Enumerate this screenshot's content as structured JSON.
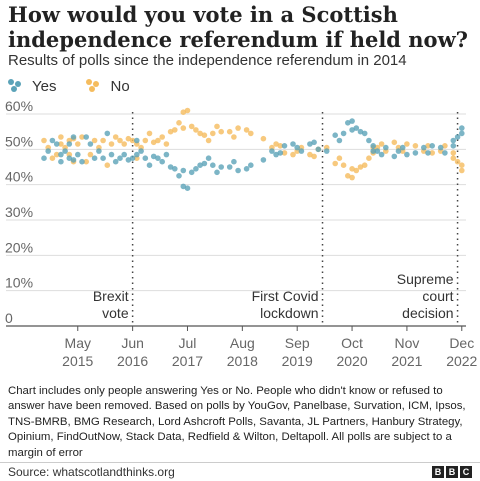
{
  "title": "How would you vote in a Scottish independence referendum if held now?",
  "subtitle": "Results of polls since the independence referendum in 2014",
  "legend": [
    {
      "name": "Yes",
      "color": "#5ba3b8"
    },
    {
      "name": "No",
      "color": "#f5bc5e"
    }
  ],
  "note": "Chart includes only people answering Yes or No. People who didn't know or refused to answer have been removed. Based on polls by YouGov, Panelbase, Survation, ICM, Ipsos, TNS-BMRB, BMG Research, Lord Ashcroft Polls, Savanta, JL Partners, Hanbury Strategy, Opinium, FindOutNow, Stack Data, Redfield & Wilton, Deltapoll. All polls are subject to a margin of error",
  "source": "Source: whatscotlandthinks.org",
  "logo": "BBC",
  "chart_data": {
    "type": "scatter",
    "title": "How would you vote in a Scottish independence referendum if held now?",
    "subtitle": "Results of polls since the independence referendum in 2014",
    "xlabel": "",
    "ylabel": "",
    "ylim": [
      0,
      60
    ],
    "xlim": [
      "2014-09",
      "2023-01"
    ],
    "yticks": [
      {
        "value": 0,
        "label": "0"
      },
      {
        "value": 10,
        "label": "10%"
      },
      {
        "value": 20,
        "label": "20%"
      },
      {
        "value": 30,
        "label": "30%"
      },
      {
        "value": 40,
        "label": "40%"
      },
      {
        "value": 50,
        "label": "50%"
      },
      {
        "value": 60,
        "label": "60%"
      }
    ],
    "xticks": [
      {
        "date": "2015-05",
        "month": "May",
        "year": "2015"
      },
      {
        "date": "2016-06",
        "month": "Jun",
        "year": "2016"
      },
      {
        "date": "2017-07",
        "month": "Jul",
        "year": "2017"
      },
      {
        "date": "2018-08",
        "month": "Aug",
        "year": "2018"
      },
      {
        "date": "2019-09",
        "month": "Sep",
        "year": "2019"
      },
      {
        "date": "2020-10",
        "month": "Oct",
        "year": "2020"
      },
      {
        "date": "2021-11",
        "month": "Nov",
        "year": "2021"
      },
      {
        "date": "2022-12",
        "month": "Dec",
        "year": "2022"
      }
    ],
    "grid": true,
    "legend_position": "top-left",
    "annotations": [
      {
        "date": "2016-06",
        "lines": [
          "Brexit",
          "vote"
        ]
      },
      {
        "date": "2020-03",
        "lines": [
          "First Covid",
          "lockdown"
        ]
      },
      {
        "date": "2022-11",
        "lines": [
          "Supreme",
          "court",
          "decision"
        ]
      }
    ],
    "series": [
      {
        "name": "Yes",
        "color": "#5ba3b8",
        "points": [
          [
            "2014-09",
            47.5
          ],
          [
            "2014-10",
            49.5
          ],
          [
            "2014-11",
            52.5
          ],
          [
            "2014-12",
            51.5
          ],
          [
            "2015-01",
            48.5
          ],
          [
            "2015-01",
            46.5
          ],
          [
            "2015-02",
            49.5
          ],
          [
            "2015-03",
            47.5
          ],
          [
            "2015-03",
            51.5
          ],
          [
            "2015-04",
            47.0
          ],
          [
            "2015-04",
            53.5
          ],
          [
            "2015-05",
            48.5
          ],
          [
            "2015-06",
            46.5
          ],
          [
            "2015-07",
            53.5
          ],
          [
            "2015-08",
            51.5
          ],
          [
            "2015-09",
            47.5
          ],
          [
            "2015-10",
            49.5
          ],
          [
            "2015-11",
            47.5
          ],
          [
            "2015-12",
            54.5
          ],
          [
            "2016-01",
            48.5
          ],
          [
            "2016-02",
            46.5
          ],
          [
            "2016-03",
            47.5
          ],
          [
            "2016-04",
            48.5
          ],
          [
            "2016-05",
            47.0
          ],
          [
            "2016-06",
            47.5
          ],
          [
            "2016-07",
            52.5
          ],
          [
            "2016-07",
            48.5
          ],
          [
            "2016-08",
            49.5
          ],
          [
            "2016-09",
            47.5
          ],
          [
            "2016-10",
            45.5
          ],
          [
            "2016-11",
            48.0
          ],
          [
            "2016-12",
            47.5
          ],
          [
            "2017-01",
            46.5
          ],
          [
            "2017-02",
            48.5
          ],
          [
            "2017-03",
            45.0
          ],
          [
            "2017-04",
            44.5
          ],
          [
            "2017-05",
            42.5
          ],
          [
            "2017-06",
            39.5
          ],
          [
            "2017-06",
            44.0
          ],
          [
            "2017-07",
            39.0
          ],
          [
            "2017-08",
            43.5
          ],
          [
            "2017-09",
            44.5
          ],
          [
            "2017-10",
            45.5
          ],
          [
            "2017-11",
            46.0
          ],
          [
            "2017-12",
            47.5
          ],
          [
            "2018-01",
            45.5
          ],
          [
            "2018-02",
            43.5
          ],
          [
            "2018-03",
            45.0
          ],
          [
            "2018-05",
            45.0
          ],
          [
            "2018-06",
            46.5
          ],
          [
            "2018-07",
            44.0
          ],
          [
            "2018-09",
            44.5
          ],
          [
            "2018-10",
            45.5
          ],
          [
            "2019-01",
            47.0
          ],
          [
            "2019-03",
            49.5
          ],
          [
            "2019-04",
            48.5
          ],
          [
            "2019-05",
            49.0
          ],
          [
            "2019-06",
            51.0
          ],
          [
            "2019-08",
            51.5
          ],
          [
            "2019-09",
            50.5
          ],
          [
            "2019-10",
            49.5
          ],
          [
            "2019-12",
            51.5
          ],
          [
            "2020-01",
            52.0
          ],
          [
            "2020-02",
            50.0
          ],
          [
            "2020-04",
            49.5
          ],
          [
            "2020-06",
            54.0
          ],
          [
            "2020-07",
            52.5
          ],
          [
            "2020-08",
            54.5
          ],
          [
            "2020-09",
            57.5
          ],
          [
            "2020-10",
            58.0
          ],
          [
            "2020-10",
            55.5
          ],
          [
            "2020-11",
            56.0
          ],
          [
            "2020-12",
            55.0
          ],
          [
            "2021-01",
            54.5
          ],
          [
            "2021-02",
            52.5
          ],
          [
            "2021-03",
            49.5
          ],
          [
            "2021-03",
            51.0
          ],
          [
            "2021-04",
            49.5
          ],
          [
            "2021-05",
            48.5
          ],
          [
            "2021-06",
            50.5
          ],
          [
            "2021-08",
            48.0
          ],
          [
            "2021-09",
            49.5
          ],
          [
            "2021-10",
            50.5
          ],
          [
            "2021-11",
            48.5
          ],
          [
            "2022-01",
            49.0
          ],
          [
            "2022-03",
            50.5
          ],
          [
            "2022-04",
            49.0
          ],
          [
            "2022-05",
            51.0
          ],
          [
            "2022-07",
            50.5
          ],
          [
            "2022-08",
            49.0
          ],
          [
            "2022-10",
            51.0
          ],
          [
            "2022-10",
            52.5
          ],
          [
            "2022-11",
            53.5
          ],
          [
            "2022-12",
            54.5
          ],
          [
            "2022-12",
            56.0
          ]
        ]
      },
      {
        "name": "No",
        "color": "#f5bc5e",
        "points": [
          [
            "2014-09",
            52.5
          ],
          [
            "2014-10",
            50.5
          ],
          [
            "2014-11",
            47.5
          ],
          [
            "2014-12",
            48.5
          ],
          [
            "2015-01",
            51.5
          ],
          [
            "2015-01",
            53.5
          ],
          [
            "2015-02",
            50.5
          ],
          [
            "2015-03",
            52.5
          ],
          [
            "2015-03",
            48.5
          ],
          [
            "2015-04",
            53.0
          ],
          [
            "2015-04",
            46.5
          ],
          [
            "2015-05",
            51.5
          ],
          [
            "2015-06",
            53.5
          ],
          [
            "2015-07",
            46.5
          ],
          [
            "2015-08",
            48.5
          ],
          [
            "2015-09",
            52.5
          ],
          [
            "2015-10",
            50.5
          ],
          [
            "2015-11",
            52.5
          ],
          [
            "2015-12",
            45.5
          ],
          [
            "2016-01",
            51.5
          ],
          [
            "2016-02",
            53.5
          ],
          [
            "2016-03",
            52.5
          ],
          [
            "2016-04",
            51.5
          ],
          [
            "2016-05",
            53.0
          ],
          [
            "2016-06",
            52.5
          ],
          [
            "2016-07",
            47.5
          ],
          [
            "2016-07",
            51.5
          ],
          [
            "2016-08",
            50.5
          ],
          [
            "2016-09",
            52.5
          ],
          [
            "2016-10",
            54.5
          ],
          [
            "2016-11",
            52.0
          ],
          [
            "2016-12",
            52.5
          ],
          [
            "2017-01",
            53.5
          ],
          [
            "2017-02",
            51.5
          ],
          [
            "2017-03",
            55.0
          ],
          [
            "2017-04",
            55.5
          ],
          [
            "2017-05",
            57.5
          ],
          [
            "2017-06",
            60.5
          ],
          [
            "2017-06",
            56.0
          ],
          [
            "2017-07",
            61.0
          ],
          [
            "2017-08",
            56.5
          ],
          [
            "2017-09",
            55.5
          ],
          [
            "2017-10",
            54.5
          ],
          [
            "2017-11",
            54.0
          ],
          [
            "2017-12",
            52.5
          ],
          [
            "2018-01",
            54.5
          ],
          [
            "2018-02",
            56.5
          ],
          [
            "2018-03",
            55.0
          ],
          [
            "2018-05",
            55.0
          ],
          [
            "2018-06",
            53.5
          ],
          [
            "2018-07",
            56.0
          ],
          [
            "2018-09",
            55.5
          ],
          [
            "2018-10",
            54.5
          ],
          [
            "2019-01",
            53.0
          ],
          [
            "2019-03",
            50.5
          ],
          [
            "2019-04",
            51.5
          ],
          [
            "2019-05",
            51.0
          ],
          [
            "2019-06",
            49.0
          ],
          [
            "2019-08",
            48.5
          ],
          [
            "2019-09",
            49.5
          ],
          [
            "2019-10",
            50.5
          ],
          [
            "2019-12",
            48.5
          ],
          [
            "2020-01",
            48.0
          ],
          [
            "2020-02",
            50.0
          ],
          [
            "2020-04",
            50.5
          ],
          [
            "2020-06",
            46.0
          ],
          [
            "2020-07",
            47.5
          ],
          [
            "2020-08",
            45.5
          ],
          [
            "2020-09",
            42.5
          ],
          [
            "2020-10",
            42.0
          ],
          [
            "2020-10",
            44.5
          ],
          [
            "2020-11",
            44.0
          ],
          [
            "2020-12",
            45.0
          ],
          [
            "2021-01",
            45.5
          ],
          [
            "2021-02",
            47.5
          ],
          [
            "2021-03",
            50.5
          ],
          [
            "2021-03",
            49.0
          ],
          [
            "2021-04",
            50.5
          ],
          [
            "2021-05",
            51.5
          ],
          [
            "2021-06",
            49.5
          ],
          [
            "2021-08",
            52.0
          ],
          [
            "2021-09",
            50.5
          ],
          [
            "2021-10",
            49.5
          ],
          [
            "2021-11",
            51.5
          ],
          [
            "2022-01",
            51.0
          ],
          [
            "2022-03",
            49.5
          ],
          [
            "2022-04",
            51.0
          ],
          [
            "2022-05",
            49.0
          ],
          [
            "2022-07",
            49.5
          ],
          [
            "2022-08",
            51.0
          ],
          [
            "2022-10",
            49.0
          ],
          [
            "2022-10",
            47.5
          ],
          [
            "2022-11",
            46.5
          ],
          [
            "2022-12",
            45.5
          ],
          [
            "2022-12",
            44.0
          ]
        ]
      }
    ]
  }
}
